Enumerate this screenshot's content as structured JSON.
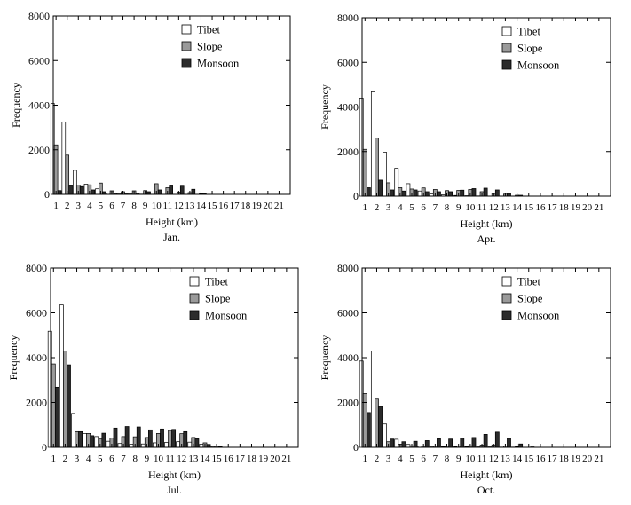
{
  "figure": {
    "background": "#ffffff"
  },
  "colors": {
    "tibet": "#ffffff",
    "slope": "#9a9a9a",
    "monsoon": "#2b2b2b",
    "axis": "#000000"
  },
  "chart_data": [
    {
      "type": "bar",
      "title": "Jan.",
      "xlabel": "Height (km)",
      "ylabel": "Frequency",
      "ylim": [
        0,
        8000
      ],
      "yticks": [
        "0",
        "2000",
        "4000",
        "6000",
        "8000"
      ],
      "legend_position": "top-right",
      "categories": [
        "1",
        "2",
        "3",
        "4",
        "5",
        "6",
        "7",
        "8",
        "9",
        "10",
        "11",
        "12",
        "13",
        "14",
        "15",
        "16",
        "17",
        "18",
        "19",
        "20",
        "21"
      ],
      "series": [
        {
          "name": "Tibet",
          "values": [
            4080,
            3250,
            1080,
            460,
            250,
            60,
            40,
            20,
            10,
            0,
            0,
            0,
            0,
            0,
            0,
            0,
            0,
            0,
            0,
            0,
            0
          ]
        },
        {
          "name": "Slope",
          "values": [
            2220,
            1760,
            420,
            430,
            510,
            160,
            120,
            160,
            170,
            480,
            300,
            100,
            80,
            30,
            0,
            0,
            0,
            0,
            0,
            0,
            0
          ]
        },
        {
          "name": "Monsoon",
          "values": [
            170,
            400,
            350,
            200,
            120,
            60,
            60,
            60,
            120,
            200,
            380,
            370,
            230,
            40,
            0,
            0,
            0,
            0,
            0,
            0,
            0
          ]
        }
      ]
    },
    {
      "type": "bar",
      "title": "Apr.",
      "xlabel": "Height (km)",
      "ylabel": "Frequency",
      "ylim": [
        0,
        8000
      ],
      "yticks": [
        "0",
        "2000",
        "4000",
        "6000",
        "8000"
      ],
      "legend_position": "top-right",
      "categories": [
        "1",
        "2",
        "3",
        "4",
        "5",
        "6",
        "7",
        "8",
        "9",
        "10",
        "11",
        "12",
        "13",
        "14",
        "15",
        "16",
        "17",
        "18",
        "19",
        "20",
        "21"
      ],
      "series": [
        {
          "name": "Tibet",
          "values": [
            4400,
            4680,
            1970,
            1250,
            560,
            230,
            100,
            60,
            30,
            20,
            10,
            0,
            0,
            0,
            0,
            0,
            0,
            0,
            0,
            0,
            0
          ]
        },
        {
          "name": "Slope",
          "values": [
            2100,
            2600,
            600,
            380,
            320,
            370,
            300,
            250,
            260,
            300,
            200,
            120,
            90,
            40,
            0,
            0,
            0,
            0,
            0,
            0,
            0
          ]
        },
        {
          "name": "Monsoon",
          "values": [
            380,
            720,
            280,
            230,
            280,
            200,
            200,
            200,
            270,
            340,
            360,
            280,
            120,
            40,
            0,
            0,
            0,
            0,
            0,
            0,
            0
          ]
        }
      ]
    },
    {
      "type": "bar",
      "title": "Jul.",
      "xlabel": "Height (km)",
      "ylabel": "Frequency",
      "ylim": [
        0,
        8000
      ],
      "yticks": [
        "0",
        "2000",
        "4000",
        "6000",
        "8000"
      ],
      "legend_position": "top-right",
      "categories": [
        "1",
        "2",
        "3",
        "4",
        "5",
        "6",
        "7",
        "8",
        "9",
        "10",
        "11",
        "12",
        "13",
        "14",
        "15",
        "16",
        "17",
        "18",
        "19",
        "20",
        "21"
      ],
      "series": [
        {
          "name": "Tibet",
          "values": [
            5180,
            6350,
            1510,
            620,
            480,
            270,
            170,
            140,
            150,
            200,
            220,
            250,
            230,
            140,
            40,
            0,
            0,
            0,
            0,
            0,
            0
          ]
        },
        {
          "name": "Slope",
          "values": [
            3720,
            4300,
            700,
            620,
            370,
            420,
            480,
            470,
            440,
            620,
            750,
            610,
            440,
            200,
            50,
            0,
            0,
            0,
            0,
            0,
            0
          ]
        },
        {
          "name": "Monsoon",
          "values": [
            2680,
            3680,
            700,
            520,
            630,
            860,
            930,
            910,
            780,
            820,
            800,
            700,
            380,
            130,
            30,
            0,
            0,
            0,
            0,
            0,
            0
          ]
        }
      ]
    },
    {
      "type": "bar",
      "title": "Oct.",
      "xlabel": "Height (km)",
      "ylabel": "Frequency",
      "ylim": [
        0,
        8000
      ],
      "yticks": [
        "0",
        "2000",
        "4000",
        "6000",
        "8000"
      ],
      "legend_position": "top-right",
      "categories": [
        "1",
        "2",
        "3",
        "4",
        "5",
        "6",
        "7",
        "8",
        "9",
        "10",
        "11",
        "12",
        "13",
        "14",
        "15",
        "16",
        "17",
        "18",
        "19",
        "20",
        "21"
      ],
      "series": [
        {
          "name": "Tibet",
          "values": [
            3850,
            4300,
            1040,
            360,
            130,
            60,
            40,
            30,
            30,
            30,
            20,
            20,
            10,
            10,
            0,
            0,
            0,
            0,
            0,
            0,
            0
          ]
        },
        {
          "name": "Slope",
          "values": [
            2400,
            2150,
            250,
            140,
            70,
            50,
            50,
            60,
            60,
            70,
            100,
            110,
            60,
            30,
            0,
            0,
            0,
            0,
            0,
            0,
            0
          ]
        },
        {
          "name": "Monsoon",
          "values": [
            1550,
            1820,
            370,
            250,
            270,
            300,
            380,
            370,
            420,
            440,
            580,
            680,
            400,
            150,
            20,
            0,
            0,
            0,
            0,
            0,
            0
          ]
        }
      ]
    }
  ]
}
